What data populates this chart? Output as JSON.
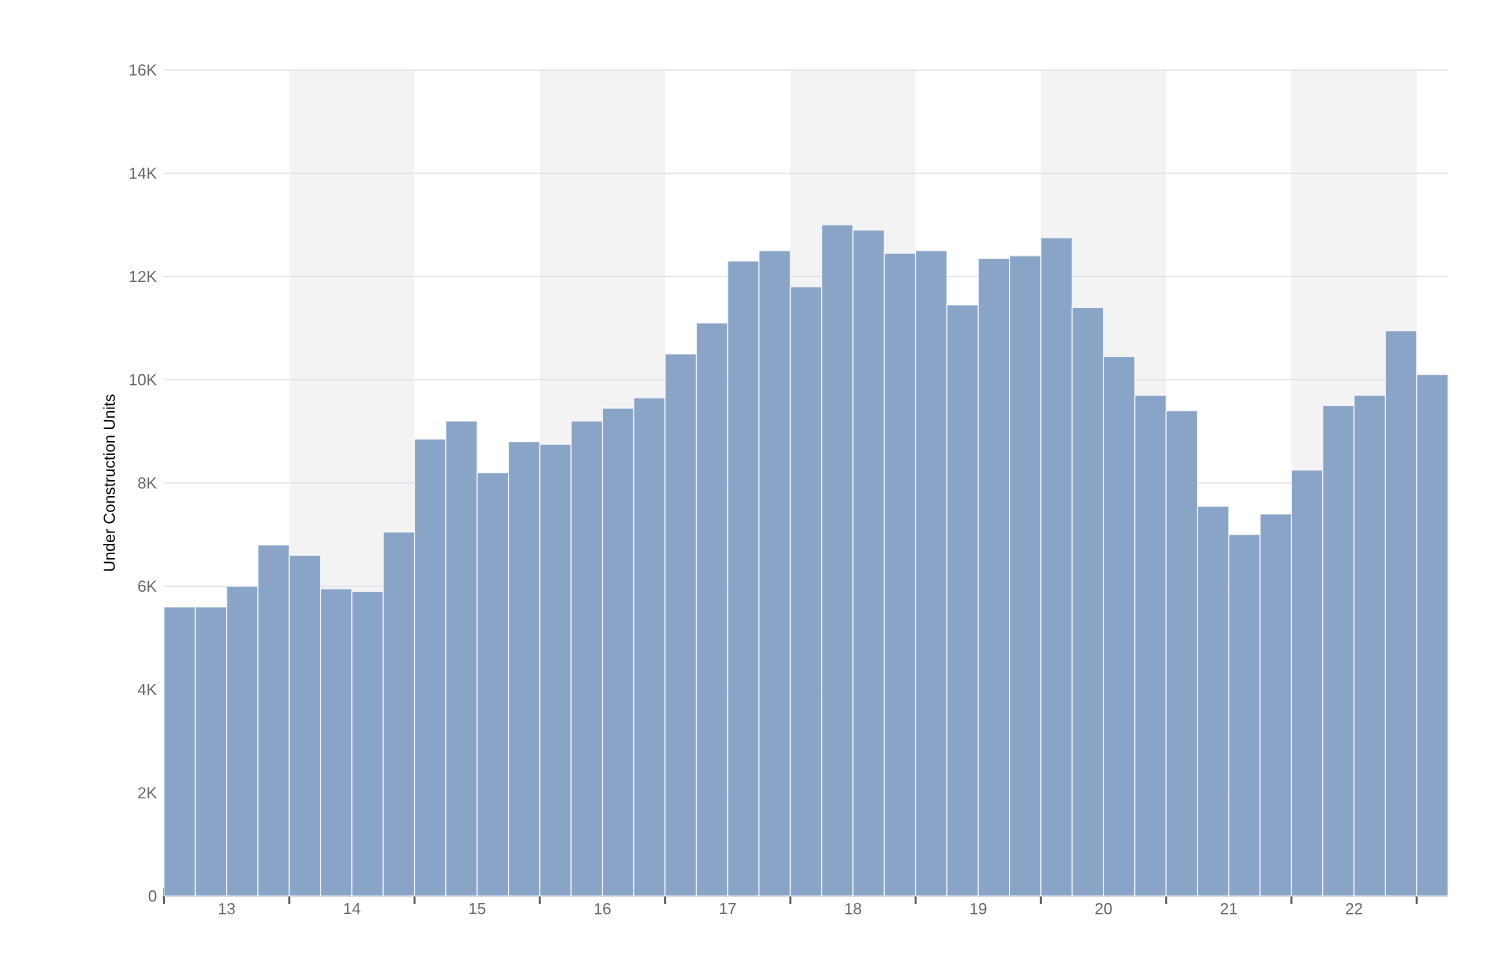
{
  "chart_data": {
    "type": "bar",
    "ylabel": "Under Construction Units",
    "x": [
      12.625,
      12.875,
      13.125,
      13.375,
      13.625,
      13.875,
      14.125,
      14.375,
      14.625,
      14.875,
      15.125,
      15.375,
      15.625,
      15.875,
      16.125,
      16.375,
      16.625,
      16.875,
      17.125,
      17.375,
      17.625,
      17.875,
      18.125,
      18.375,
      18.625,
      18.875,
      19.125,
      19.375,
      19.625,
      19.875,
      20.125,
      20.375,
      20.625,
      20.875,
      21.125,
      21.375,
      21.625,
      21.875,
      22.125,
      22.375,
      22.625
    ],
    "values": [
      5600,
      5600,
      6000,
      6800,
      6600,
      5950,
      5900,
      7050,
      8850,
      9200,
      8200,
      8800,
      8750,
      9200,
      9450,
      9650,
      10500,
      11100,
      12300,
      12500,
      11800,
      13000,
      12900,
      12450,
      12500,
      11450,
      12350,
      12400,
      12750,
      11400,
      10450,
      9700,
      9400,
      7550,
      7000,
      7400,
      8250,
      9500,
      9700,
      10950,
      10100
    ],
    "color": "#8aa4c8",
    "xlim": [
      12.5,
      22.75
    ],
    "ylim": [
      0,
      16000
    ],
    "xticks": [
      {
        "value": 12.5,
        "label": null
      },
      13,
      {
        "value": 13.5,
        "label": null
      },
      14,
      {
        "value": 14.5,
        "label": null
      },
      15,
      {
        "value": 15.5,
        "label": null
      },
      16,
      {
        "value": 16.5,
        "label": null
      },
      17,
      {
        "value": 17.5,
        "label": null
      },
      18,
      {
        "value": 18.5,
        "label": null
      },
      19,
      {
        "value": 19.5,
        "label": null
      },
      20,
      {
        "value": 20.5,
        "label": null
      },
      21,
      {
        "value": 21.5,
        "label": null
      },
      22,
      {
        "value": 22.5,
        "label": null
      }
    ],
    "yticks": [
      0,
      {
        "value": 2000,
        "label": "2K"
      },
      {
        "value": 4000,
        "label": "4K"
      },
      {
        "value": 6000,
        "label": "6K"
      },
      {
        "value": 8000,
        "label": "8K"
      },
      {
        "value": 10000,
        "label": "10K"
      },
      {
        "value": 12000,
        "label": "12K"
      },
      {
        "value": 14000,
        "label": "14K"
      },
      {
        "value": 16000,
        "label": "16K"
      }
    ],
    "grid": "y",
    "bands": [
      {
        "axis": "x",
        "from": 13.5,
        "to": 14.5,
        "color": "#f3f3f3"
      },
      {
        "axis": "x",
        "from": 15.5,
        "to": 16.5,
        "color": "#f3f3f3"
      },
      {
        "axis": "x",
        "from": 17.5,
        "to": 18.5,
        "color": "#f3f3f3"
      },
      {
        "axis": "x",
        "from": 19.5,
        "to": 20.5,
        "color": "#f3f3f3"
      },
      {
        "axis": "x",
        "from": 21.5,
        "to": 22.5,
        "color": "#f3f3f3"
      }
    ]
  }
}
